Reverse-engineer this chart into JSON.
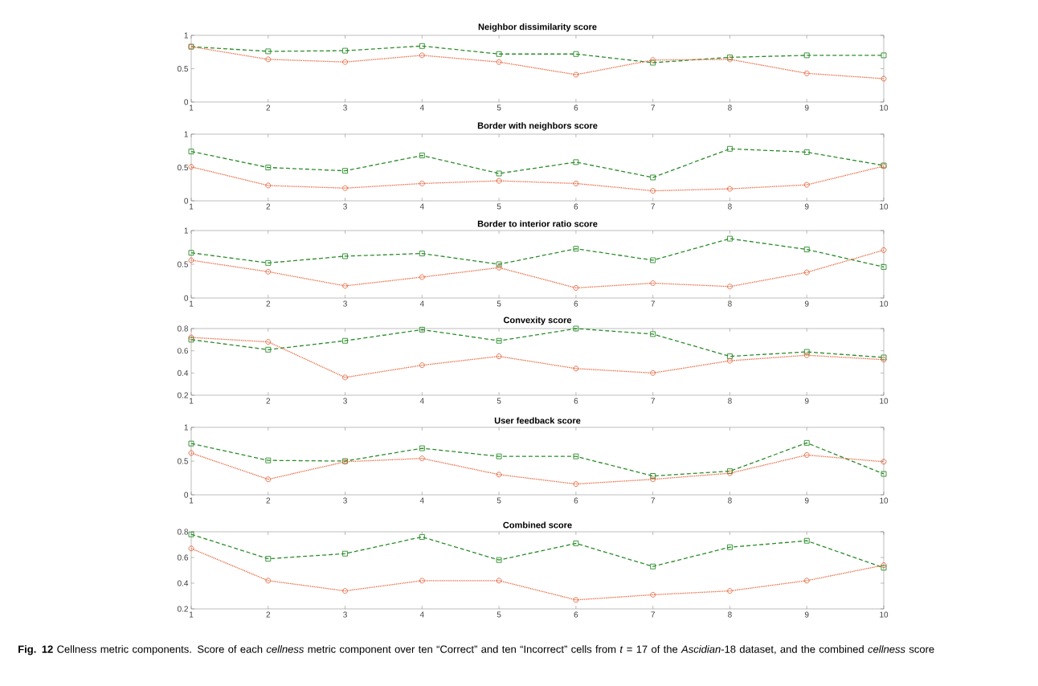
{
  "chart_data": [
    {
      "type": "line",
      "title": "Neighbor dissimilarity score",
      "xlim": [
        1,
        10
      ],
      "xticks": [
        1,
        2,
        3,
        4,
        5,
        6,
        7,
        8,
        9,
        10
      ],
      "ylim": [
        0,
        1
      ],
      "yticks": [
        0,
        0.5,
        1
      ],
      "x": [
        1,
        2,
        3,
        4,
        5,
        6,
        7,
        8,
        9,
        10
      ],
      "series": [
        {
          "color": "#2a8c2a",
          "marker": "square",
          "line_style": "dashed",
          "values": [
            0.83,
            0.76,
            0.77,
            0.84,
            0.72,
            0.72,
            0.59,
            0.67,
            0.7,
            0.7
          ]
        },
        {
          "color": "#e8643c",
          "marker": "circle",
          "line_style": "dotted",
          "values": [
            0.83,
            0.64,
            0.6,
            0.7,
            0.6,
            0.41,
            0.63,
            0.64,
            0.43,
            0.35
          ]
        }
      ]
    },
    {
      "type": "line",
      "title": "Border with neighbors score",
      "xlim": [
        1,
        10
      ],
      "xticks": [
        1,
        2,
        3,
        4,
        5,
        6,
        7,
        8,
        9,
        10
      ],
      "ylim": [
        0,
        1
      ],
      "yticks": [
        0,
        0.5,
        1
      ],
      "x": [
        1,
        2,
        3,
        4,
        5,
        6,
        7,
        8,
        9,
        10
      ],
      "series": [
        {
          "color": "#2a8c2a",
          "marker": "square",
          "line_style": "dashed",
          "values": [
            0.74,
            0.5,
            0.45,
            0.68,
            0.41,
            0.58,
            0.35,
            0.78,
            0.73,
            0.53
          ]
        },
        {
          "color": "#e8643c",
          "marker": "circle",
          "line_style": "dotted",
          "values": [
            0.51,
            0.23,
            0.19,
            0.26,
            0.3,
            0.26,
            0.15,
            0.18,
            0.24,
            0.52
          ]
        }
      ]
    },
    {
      "type": "line",
      "title": "Border to interior ratio score",
      "xlim": [
        1,
        10
      ],
      "xticks": [
        1,
        2,
        3,
        4,
        5,
        6,
        7,
        8,
        9,
        10
      ],
      "ylim": [
        0,
        1
      ],
      "yticks": [
        0,
        0.5,
        1
      ],
      "x": [
        1,
        2,
        3,
        4,
        5,
        6,
        7,
        8,
        9,
        10
      ],
      "series": [
        {
          "color": "#2a8c2a",
          "marker": "square",
          "line_style": "dashed",
          "values": [
            0.67,
            0.52,
            0.62,
            0.66,
            0.5,
            0.73,
            0.56,
            0.88,
            0.72,
            0.46
          ]
        },
        {
          "color": "#e8643c",
          "marker": "circle",
          "line_style": "dotted",
          "values": [
            0.56,
            0.39,
            0.18,
            0.31,
            0.45,
            0.15,
            0.22,
            0.17,
            0.38,
            0.71
          ]
        }
      ]
    },
    {
      "type": "line",
      "title": "Convexity score",
      "xlim": [
        1,
        10
      ],
      "xticks": [
        1,
        2,
        3,
        4,
        5,
        6,
        7,
        8,
        9,
        10
      ],
      "ylim": [
        0.2,
        0.8
      ],
      "yticks": [
        0.2,
        0.4,
        0.6,
        0.8
      ],
      "x": [
        1,
        2,
        3,
        4,
        5,
        6,
        7,
        8,
        9,
        10
      ],
      "series": [
        {
          "color": "#2a8c2a",
          "marker": "square",
          "line_style": "dashed",
          "values": [
            0.7,
            0.61,
            0.69,
            0.79,
            0.69,
            0.8,
            0.75,
            0.55,
            0.59,
            0.54
          ]
        },
        {
          "color": "#e8643c",
          "marker": "circle",
          "line_style": "dotted",
          "values": [
            0.72,
            0.68,
            0.36,
            0.47,
            0.55,
            0.44,
            0.4,
            0.51,
            0.56,
            0.52
          ]
        }
      ]
    },
    {
      "type": "line",
      "title": "User feedback score",
      "xlim": [
        1,
        10
      ],
      "xticks": [
        1,
        2,
        3,
        4,
        5,
        6,
        7,
        8,
        9,
        10
      ],
      "ylim": [
        0,
        1
      ],
      "yticks": [
        0,
        0.5,
        1
      ],
      "x": [
        1,
        2,
        3,
        4,
        5,
        6,
        7,
        8,
        9,
        10
      ],
      "series": [
        {
          "color": "#2a8c2a",
          "marker": "square",
          "line_style": "dashed",
          "values": [
            0.76,
            0.51,
            0.5,
            0.69,
            0.57,
            0.57,
            0.28,
            0.35,
            0.77,
            0.31
          ]
        },
        {
          "color": "#e8643c",
          "marker": "circle",
          "line_style": "dotted",
          "values": [
            0.62,
            0.23,
            0.49,
            0.54,
            0.3,
            0.16,
            0.23,
            0.32,
            0.59,
            0.49
          ]
        }
      ]
    },
    {
      "type": "line",
      "title": "Combined score",
      "xlim": [
        1,
        10
      ],
      "xticks": [
        1,
        2,
        3,
        4,
        5,
        6,
        7,
        8,
        9,
        10
      ],
      "ylim": [
        0.2,
        0.8
      ],
      "yticks": [
        0.2,
        0.4,
        0.6,
        0.8
      ],
      "x": [
        1,
        2,
        3,
        4,
        5,
        6,
        7,
        8,
        9,
        10
      ],
      "series": [
        {
          "color": "#2a8c2a",
          "marker": "square",
          "line_style": "dashed",
          "values": [
            0.78,
            0.59,
            0.63,
            0.76,
            0.58,
            0.71,
            0.53,
            0.68,
            0.73,
            0.52
          ]
        },
        {
          "color": "#e8643c",
          "marker": "circle",
          "line_style": "dotted",
          "values": [
            0.67,
            0.42,
            0.34,
            0.42,
            0.42,
            0.27,
            0.31,
            0.34,
            0.42,
            0.54
          ]
        }
      ],
      "annotations": [
        "**Fig. 12** Cellness metric components. Score of each *cellness* metric component over ten “Correct” and ten “Incorrect” cells from *t* = 17 of the *Ascidian*-18 dataset, and the combined *cellness* score"
      ]
    }
  ]
}
